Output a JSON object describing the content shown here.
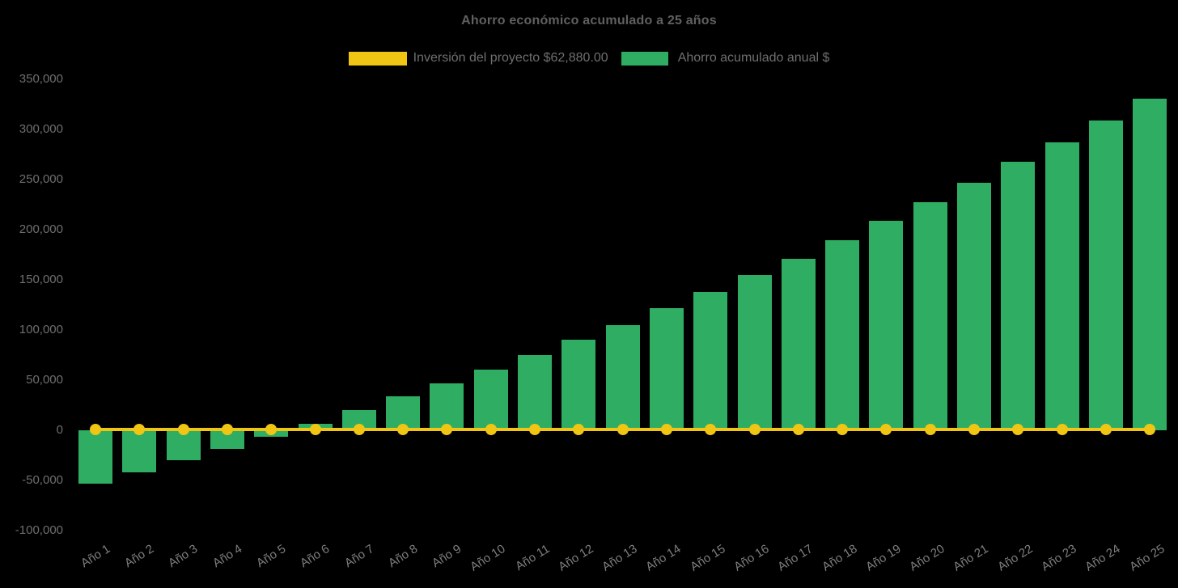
{
  "title": "Ahorro económico acumulado a 25 años",
  "legend": {
    "items": [
      {
        "label": "Inversión del proyecto $62,880.00",
        "marker": "line",
        "color": "#F0C514"
      },
      {
        "label": "Ahorro acumulado anual $",
        "marker": "bar",
        "color": "#2FAE63"
      }
    ]
  },
  "colors": {
    "background": "#000000",
    "investment_yellow": "#F0C514",
    "savings_green": "#2FAE63",
    "title_text": "#606060",
    "axis_text": "#6F6F6F",
    "xlabel_text": "#7E7E7E"
  },
  "chart_data": {
    "type": "bar",
    "title": "Ahorro económico acumulado a 25 años",
    "categories": [
      "Año 1",
      "Año 2",
      "Año 3",
      "Año 4",
      "Año 5",
      "Año 6",
      "Año 7",
      "Año 8",
      "Año 9",
      "Año 10",
      "Año 11",
      "Año 12",
      "Año 13",
      "Año 14",
      "Año 15",
      "Año 16",
      "Año 17",
      "Año 18",
      "Año 19",
      "Año 20",
      "Año 21",
      "Año 22",
      "Año 23",
      "Año 24",
      "Año 25"
    ],
    "series": [
      {
        "name": "Ahorro acumulado anual $",
        "type": "bar",
        "color": "#2FAE63",
        "values": [
          -53000,
          -42000,
          -30000,
          -18500,
          -6500,
          6500,
          20000,
          34000,
          47000,
          60500,
          75000,
          90000,
          105000,
          122000,
          138000,
          155000,
          171000,
          189500,
          209000,
          227500,
          247000,
          268000,
          287000,
          309000,
          330500
        ]
      },
      {
        "name": "Inversión del proyecto $62,880.00",
        "type": "line",
        "color": "#F0C514",
        "values": [
          0,
          0,
          0,
          0,
          0,
          0,
          0,
          0,
          0,
          0,
          0,
          0,
          0,
          0,
          0,
          0,
          0,
          0,
          0,
          0,
          0,
          0,
          0,
          0,
          0
        ]
      }
    ],
    "ylim": [
      -100000,
      350000
    ],
    "ytick_step": 50000,
    "ytick_format": "thousands-comma",
    "grid": false,
    "legend_position": "top",
    "xlabel_rotation_deg": -32
  }
}
